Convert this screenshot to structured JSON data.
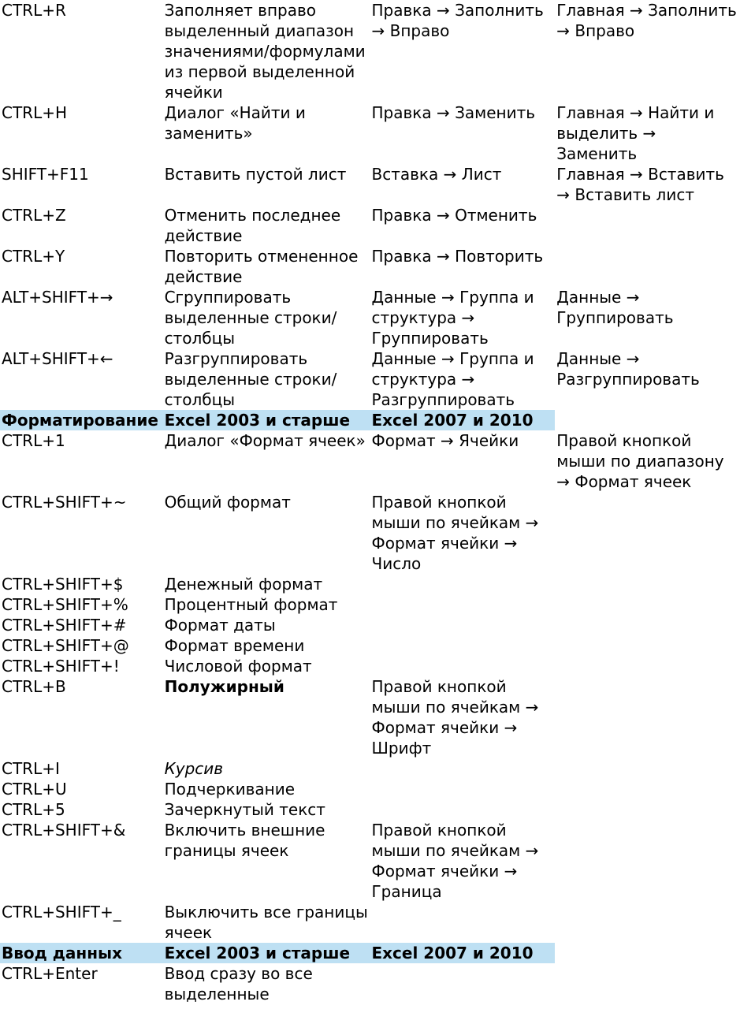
{
  "colors": {
    "header_bg": "#bee0f3",
    "text": "#000000",
    "page_bg": "#ffffff"
  },
  "font": {
    "family": "DejaVu Sans",
    "size_pt": 15
  },
  "layout": "keyboard-shortcut-reference-table",
  "rows": [
    {
      "t": "r4",
      "k": "CTRL+R",
      "d": "Заполняет вправо выделенный диапазон значениями/формулами из первой выделенной ячейки",
      "m1": "Правка → Заполнить → Вправо",
      "m2": "Главная → Заполнить → Вправо"
    },
    {
      "t": "r4",
      "k": "CTRL+H",
      "d": "Диалог «Найти и заменить»",
      "m1": "Правка → Заменить",
      "m2": "Главная → Найти и выделить → Заменить"
    },
    {
      "t": "r4",
      "k": "SHIFT+F11",
      "d": "Вставить пустой лист",
      "m1": "Вставка → Лист",
      "m2": "Главная → Вставить → Вставить лист"
    },
    {
      "t": "r3a",
      "k": "CTRL+Z",
      "d": "Отменить последнее действие",
      "m": "Правка → Отменить"
    },
    {
      "t": "r3a",
      "k": "CTRL+Y",
      "d": "Повторить отмененное действие",
      "m": "Правка → Повторить"
    },
    {
      "t": "r4",
      "k": "ALT+SHIFT+→",
      "d": "Сгруппировать выделенные строки/столбцы",
      "m1": "Данные → Группа и структура → Группировать",
      "m2": "Данные → Группировать"
    },
    {
      "t": "r4",
      "k": "ALT+SHIFT+←",
      "d": "Разгруппировать выделенные строки/столбцы",
      "m1": "Данные → Группа и структура → Разгруппировать",
      "m2": "Данные → Разгруппировать"
    },
    {
      "t": "hdr",
      "h1": "Форматирование",
      "h2": "Excel 2003 и старше",
      "h3": "Excel 2007 и 2010"
    },
    {
      "t": "r4",
      "k": "CTRL+1",
      "d": "Диалог «Формат ячеек»",
      "m1": "Формат → Ячейки",
      "m2": "Правой кнопкой мыши по диапазону → Формат ячеек"
    },
    {
      "t": "r3a",
      "k": "CTRL+SHIFT+~",
      "d": "Общий формат",
      "m": "Правой кнопкой мыши по ячейкам → Формат ячейки → Число"
    },
    {
      "t": "r2",
      "k": "CTRL+SHIFT+$",
      "d": "Денежный формат"
    },
    {
      "t": "r2",
      "k": "CTRL+SHIFT+%",
      "d": "Процентный формат"
    },
    {
      "t": "r2",
      "k": "CTRL+SHIFT+#",
      "d": "Формат даты"
    },
    {
      "t": "r2",
      "k": "CTRL+SHIFT+@",
      "d": "Формат времени"
    },
    {
      "t": "r2",
      "k": "CTRL+SHIFT+!",
      "d": "Числовой формат"
    },
    {
      "t": "r3a",
      "k": "CTRL+B",
      "d": "Полужирный",
      "style": "bold",
      "m": "Правой кнопкой мыши по ячейкам → Формат ячейки → Шрифт"
    },
    {
      "t": "r2",
      "k": "CTRL+I",
      "d": "Курсив",
      "style": "italic"
    },
    {
      "t": "r2",
      "k": "CTRL+U",
      "d": "Подчеркивание"
    },
    {
      "t": "r2",
      "k": "CTRL+5",
      "d": "Зачеркнутый текст"
    },
    {
      "t": "r3a",
      "k": "CTRL+SHIFT+&",
      "d": "Включить внешние границы ячеек",
      "m": "Правой кнопкой мыши по ячейкам → Формат ячейки → Граница"
    },
    {
      "t": "r2",
      "k": "CTRL+SHIFT+_",
      "d": "Выключить все границы ячеек"
    },
    {
      "t": "hdr",
      "h1": "Ввод данных",
      "h2": "Excel 2003 и старше",
      "h3": "Excel 2007 и 2010"
    },
    {
      "t": "r2",
      "k": "CTRL+Enter",
      "d": "Ввод сразу во все выделенные"
    }
  ]
}
